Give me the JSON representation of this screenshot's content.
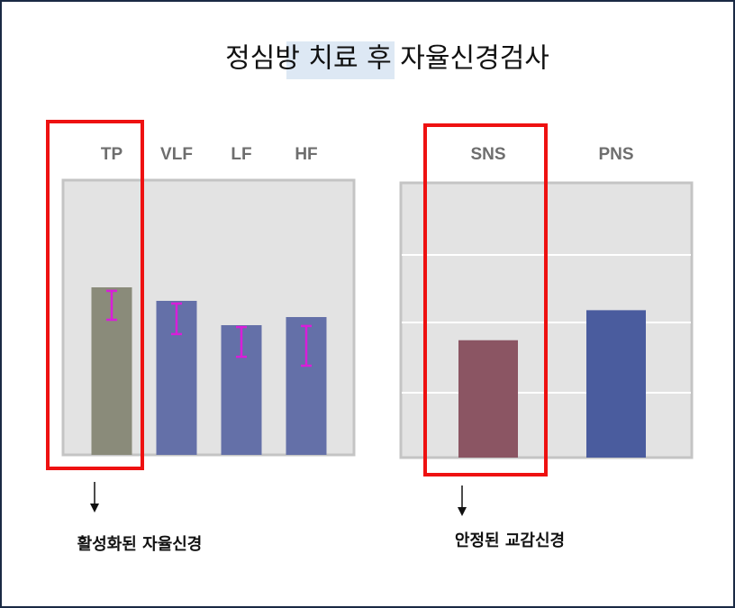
{
  "title": "정심방 치료 후 자율신경검사",
  "chart_data": [
    {
      "type": "bar",
      "categories": [
        "TP",
        "VLF",
        "LF",
        "HF"
      ],
      "values": [
        62,
        57,
        48,
        51
      ],
      "colors": [
        "#8a8b7a",
        "#6470a8",
        "#6470a8",
        "#6470a8"
      ],
      "error_low": [
        50,
        44.7,
        36.3,
        33
      ],
      "error_high": [
        60.7,
        56,
        47.3,
        47.7
      ],
      "error_color": "#d81ed8",
      "ylim": [
        0,
        100
      ],
      "annotation": "활성화된 자율신경"
    },
    {
      "type": "bar",
      "categories": [
        "SNS",
        "PNS"
      ],
      "values": [
        43,
        54
      ],
      "colors": [
        "#8b5563",
        "#4a5c9e"
      ],
      "ylim": [
        0,
        100
      ],
      "annotation": "안정된 교감신경"
    }
  ]
}
